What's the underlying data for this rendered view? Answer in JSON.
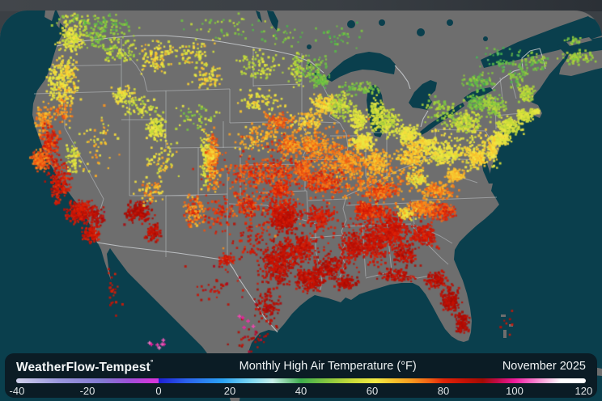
{
  "page": {
    "background": "#3b4045"
  },
  "map": {
    "ocean_color": "#0a3f4d",
    "land_color": "#6e6e6e",
    "state_border_color": "#b6babd",
    "national_border_color": "#c9cdd0"
  },
  "footer": {
    "bg": "#0b1c25",
    "brand": "WeatherFlow-Tempest",
    "brand_degree": "°",
    "title": "Monthly High Air Temperature (°F)",
    "date": "November 2025"
  },
  "legend": {
    "min": -40,
    "max": 120,
    "ticks": [
      -40,
      -20,
      0,
      20,
      40,
      60,
      80,
      100,
      120
    ],
    "stops": [
      [
        -40,
        "#cfd0ea"
      ],
      [
        -28,
        "#9b97dd"
      ],
      [
        -16,
        "#837bd2"
      ],
      [
        -8,
        "#a04fd8"
      ],
      [
        -2,
        "#d238dc"
      ],
      [
        0,
        "#d238dc"
      ],
      [
        0,
        "#1e1fd4"
      ],
      [
        8,
        "#2b63ee"
      ],
      [
        18,
        "#2ba4f4"
      ],
      [
        26,
        "#7fd8f2"
      ],
      [
        32,
        "#c8efe9"
      ],
      [
        40,
        "#3fae4e"
      ],
      [
        48,
        "#8cc93e"
      ],
      [
        55,
        "#cfdd39"
      ],
      [
        61,
        "#f2ea44"
      ],
      [
        66,
        "#f8c22d"
      ],
      [
        71,
        "#f89a20"
      ],
      [
        76,
        "#f26114"
      ],
      [
        80,
        "#e02508"
      ],
      [
        86,
        "#c41105"
      ],
      [
        91,
        "#a30b03"
      ],
      [
        95,
        "#c00b45"
      ],
      [
        100,
        "#ee1c9c"
      ],
      [
        104,
        "#f75fc0"
      ],
      [
        109,
        "#fcb9e2"
      ],
      [
        113,
        "#ffffff"
      ],
      [
        120,
        "#ffffff"
      ]
    ]
  },
  "stations": {
    "dot_alpha": 0.92,
    "clusters": [
      [
        460,
        222,
        36,
        22,
        260,
        72,
        5
      ],
      [
        470,
        291,
        40,
        25,
        300,
        84,
        4
      ],
      [
        400,
        192,
        32,
        27,
        260,
        73,
        5
      ],
      [
        340,
        222,
        27,
        36,
        220,
        79,
        5
      ],
      [
        576,
        181,
        27,
        18,
        170,
        60,
        5
      ],
      [
        300,
        240,
        40,
        40,
        110,
        78,
        6
      ],
      [
        95,
        24,
        16,
        7,
        50,
        52,
        6
      ],
      [
        138,
        30,
        22,
        9,
        60,
        46,
        5
      ],
      [
        88,
        48,
        11,
        13,
        150,
        58,
        5
      ],
      [
        150,
        62,
        16,
        11,
        80,
        54,
        6
      ],
      [
        120,
        44,
        13,
        10,
        70,
        48,
        5
      ],
      [
        82,
        90,
        9,
        12,
        120,
        62,
        5
      ],
      [
        66,
        102,
        5,
        16,
        60,
        60,
        4
      ],
      [
        82,
        114,
        11,
        12,
        80,
        64,
        6
      ],
      [
        53,
        148,
        6,
        15,
        80,
        70,
        5
      ],
      [
        76,
        140,
        11,
        11,
        60,
        72,
        6
      ],
      [
        62,
        182,
        8,
        16,
        170,
        80,
        5
      ],
      [
        50,
        198,
        7,
        9,
        140,
        75,
        4
      ],
      [
        74,
        226,
        9,
        16,
        170,
        83,
        5
      ],
      [
        90,
        196,
        7,
        13,
        60,
        58,
        6
      ],
      [
        98,
        262,
        11,
        9,
        200,
        84,
        4
      ],
      [
        112,
        288,
        7,
        7,
        110,
        84,
        4
      ],
      [
        118,
        268,
        9,
        9,
        80,
        88,
        5
      ],
      [
        118,
        175,
        20,
        26,
        55,
        64,
        8
      ],
      [
        152,
        118,
        9,
        7,
        70,
        60,
        5
      ],
      [
        172,
        132,
        16,
        9,
        55,
        56,
        6
      ],
      [
        196,
        72,
        15,
        15,
        100,
        62,
        7
      ],
      [
        240,
        68,
        18,
        13,
        70,
        60,
        8
      ],
      [
        256,
        96,
        13,
        9,
        60,
        62,
        6
      ],
      [
        193,
        158,
        7,
        11,
        120,
        58,
        5
      ],
      [
        200,
        196,
        13,
        16,
        60,
        62,
        8
      ],
      [
        240,
        146,
        22,
        16,
        45,
        52,
        8
      ],
      [
        254,
        196,
        5,
        24,
        110,
        58,
        6
      ],
      [
        263,
        198,
        6,
        24,
        150,
        72,
        7
      ],
      [
        262,
        192,
        4,
        6,
        60,
        66,
        5
      ],
      [
        300,
        212,
        14,
        13,
        70,
        78,
        5
      ],
      [
        172,
        262,
        11,
        9,
        160,
        88,
        4
      ],
      [
        190,
        288,
        7,
        7,
        80,
        87,
        4
      ],
      [
        185,
        236,
        13,
        9,
        60,
        68,
        8
      ],
      [
        240,
        260,
        9,
        13,
        110,
        74,
        8
      ],
      [
        270,
        266,
        11,
        15,
        60,
        80,
        5
      ],
      [
        279,
        323,
        7,
        5,
        50,
        83,
        4
      ],
      [
        320,
        80,
        20,
        13,
        80,
        55,
        5
      ],
      [
        368,
        85,
        7,
        13,
        60,
        54,
        5
      ],
      [
        320,
        125,
        20,
        11,
        80,
        60,
        6
      ],
      [
        345,
        150,
        11,
        7,
        100,
        74,
        5
      ],
      [
        320,
        170,
        20,
        11,
        100,
        68,
        6
      ],
      [
        356,
        180,
        9,
        7,
        110,
        74,
        5
      ],
      [
        335,
        215,
        20,
        11,
        120,
        78,
        5
      ],
      [
        346,
        236,
        9,
        7,
        100,
        80,
        4
      ],
      [
        350,
        262,
        16,
        9,
        170,
        83,
        4
      ],
      [
        305,
        255,
        9,
        11,
        80,
        80,
        5
      ],
      [
        352,
        273,
        11,
        9,
        240,
        86,
        4
      ],
      [
        342,
        330,
        15,
        15,
        240,
        87,
        4
      ],
      [
        382,
        345,
        11,
        9,
        220,
        87,
        4
      ],
      [
        375,
        305,
        13,
        13,
        150,
        85,
        4
      ],
      [
        355,
        310,
        18,
        14,
        160,
        86,
        4
      ],
      [
        312,
        300,
        16,
        15,
        60,
        84,
        5
      ],
      [
        330,
        380,
        11,
        15,
        100,
        89,
        4
      ],
      [
        385,
        85,
        13,
        11,
        70,
        48,
        5
      ],
      [
        397,
        100,
        8,
        6,
        60,
        46,
        4
      ],
      [
        400,
        130,
        10,
        8,
        150,
        64,
        5
      ],
      [
        380,
        150,
        13,
        9,
        100,
        66,
        5
      ],
      [
        385,
        180,
        15,
        9,
        150,
        72,
        5
      ],
      [
        420,
        130,
        13,
        11,
        120,
        54,
        5
      ],
      [
        443,
        150,
        7,
        9,
        100,
        58,
        4
      ],
      [
        448,
        176,
        9,
        7,
        180,
        62,
        4
      ],
      [
        430,
        200,
        13,
        13,
        180,
        72,
        5
      ],
      [
        400,
        225,
        16,
        11,
        200,
        78,
        5
      ],
      [
        375,
        210,
        7,
        7,
        120,
        76,
        4
      ],
      [
        395,
        268,
        13,
        11,
        150,
        83,
        4
      ],
      [
        465,
        142,
        7,
        14,
        100,
        56,
        4
      ],
      [
        481,
        152,
        9,
        13,
        120,
        56,
        5
      ],
      [
        505,
        166,
        9,
        7,
        140,
        60,
        4
      ],
      [
        445,
        110,
        16,
        5,
        60,
        47,
        4
      ],
      [
        465,
        200,
        11,
        11,
        160,
        68,
        5
      ],
      [
        510,
        192,
        13,
        11,
        200,
        66,
        5
      ],
      [
        526,
        176,
        7,
        4,
        80,
        62,
        4
      ],
      [
        470,
        236,
        15,
        7,
        150,
        76,
        5
      ],
      [
        460,
        263,
        18,
        7,
        180,
        80,
        4
      ],
      [
        450,
        258,
        7,
        5,
        100,
        80,
        4
      ],
      [
        410,
        330,
        13,
        11,
        170,
        87,
        4
      ],
      [
        428,
        350,
        9,
        5,
        100,
        88,
        3
      ],
      [
        436,
        306,
        9,
        13,
        140,
        86,
        4
      ],
      [
        461,
        301,
        11,
        13,
        180,
        85,
        4
      ],
      [
        486,
        286,
        11,
        11,
        220,
        84,
        4
      ],
      [
        500,
        316,
        11,
        9,
        110,
        87,
        4
      ],
      [
        490,
        341,
        15,
        5,
        100,
        87,
        4
      ],
      [
        540,
        346,
        9,
        7,
        120,
        87,
        4
      ],
      [
        557,
        371,
        7,
        11,
        160,
        88,
        3
      ],
      [
        571,
        399,
        5,
        9,
        110,
        89,
        3
      ],
      [
        525,
        291,
        11,
        9,
        150,
        83,
        4
      ],
      [
        545,
        262,
        13,
        7,
        160,
        79,
        4
      ],
      [
        521,
        258,
        11,
        7,
        150,
        73,
        4
      ],
      [
        502,
        263,
        7,
        7,
        70,
        64,
        6
      ],
      [
        540,
        236,
        15,
        7,
        160,
        72,
        5
      ],
      [
        516,
        221,
        9,
        7,
        80,
        62,
        6
      ],
      [
        562,
        216,
        7,
        5,
        120,
        67,
        4
      ],
      [
        546,
        191,
        15,
        9,
        180,
        60,
        5
      ],
      [
        590,
        196,
        7,
        7,
        140,
        64,
        4
      ],
      [
        618,
        172,
        9,
        5,
        140,
        60,
        4
      ],
      [
        609,
        186,
        4,
        9,
        80,
        63,
        4
      ],
      [
        576,
        151,
        16,
        9,
        150,
        54,
        5
      ],
      [
        591,
        126,
        9,
        7,
        70,
        46,
        4
      ],
      [
        611,
        131,
        9,
        9,
        100,
        50,
        5
      ],
      [
        631,
        156,
        11,
        7,
        150,
        56,
        4
      ],
      [
        648,
        143,
        6,
        5,
        100,
        56,
        3
      ],
      [
        661,
        138,
        4,
        3,
        35,
        57,
        3
      ],
      [
        651,
        116,
        7,
        7,
        80,
        52,
        4
      ],
      [
        641,
        92,
        9,
        11,
        50,
        46,
        5
      ],
      [
        546,
        136,
        15,
        11,
        80,
        50,
        5
      ],
      [
        591,
        101,
        13,
        7,
        70,
        45,
        5
      ],
      [
        621,
        72,
        18,
        11,
        45,
        42,
        4
      ],
      [
        666,
        76,
        9,
        7,
        40,
        46,
        5
      ],
      [
        714,
        71,
        13,
        6,
        60,
        50,
        4
      ],
      [
        709,
        50,
        7,
        3,
        20,
        48,
        4
      ],
      [
        282,
        36,
        36,
        11,
        45,
        48,
        6
      ],
      [
        352,
        41,
        18,
        9,
        25,
        46,
        5
      ],
      [
        422,
        46,
        22,
        11,
        30,
        44,
        4
      ],
      [
        265,
        352,
        22,
        16,
        35,
        88,
        5
      ],
      [
        310,
        420,
        16,
        13,
        30,
        90,
        5
      ],
      [
        140,
        360,
        7,
        18,
        22,
        85,
        5
      ],
      [
        197,
        426,
        13,
        7,
        7,
        103,
        3
      ],
      [
        302,
        396,
        9,
        5,
        5,
        102,
        3
      ],
      [
        700,
        463,
        18,
        7,
        15,
        88,
        3
      ],
      [
        625,
        396,
        7,
        11,
        7,
        86,
        3
      ]
    ]
  }
}
